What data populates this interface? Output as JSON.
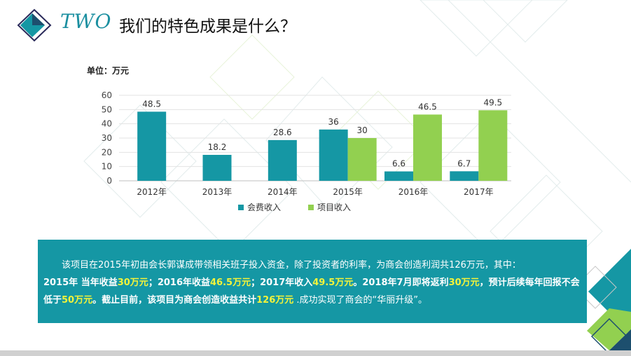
{
  "header": {
    "title_en": "TWO",
    "title_cn": "我们的特色成果是什么？"
  },
  "unit_label": "单位：万元",
  "colors": {
    "teal": "#1597a4",
    "green": "#92d050",
    "highlight": "#f3f33a"
  },
  "chart_data": {
    "type": "bar",
    "title": "",
    "xlabel": "",
    "ylabel": "",
    "ylim": [
      0,
      60
    ],
    "yticks": [
      "0",
      "10",
      "20",
      "30",
      "40",
      "50",
      "60"
    ],
    "grid": true,
    "legend_position": "bottom",
    "categories": [
      "2012年",
      "2013年",
      "2014年",
      "2015年",
      "2016年",
      "2017年"
    ],
    "series": [
      {
        "name": "会费收入",
        "color": "#1597a4",
        "values": [
          48.5,
          18.2,
          28.6,
          36,
          6.6,
          6.7
        ]
      },
      {
        "name": "项目收入",
        "color": "#92d050",
        "values": [
          null,
          null,
          null,
          30,
          46.5,
          49.5
        ]
      }
    ]
  },
  "callout": {
    "intro": "该项目在2015年初由会长郭谋成带领相关班子投入资金，除了投资者的利率，为商会创造利润共126万元，其中：",
    "s1": "2015年 当年收益",
    "v1": "30万元",
    "s2": "；2016年收益",
    "v2": "46.5万元",
    "s3": "；2017年收入",
    "v3": "49.5万元",
    "s4": "。2018年7月即将返利",
    "v4": "30万元",
    "s5": "，预计后续每年回报不会低于",
    "v5": "50万元",
    "s6": "。截止目前，该项目为商会创造收益共计",
    "v6": "126万元",
    "s7": " .成功实现了商会的“华丽升级”。"
  }
}
